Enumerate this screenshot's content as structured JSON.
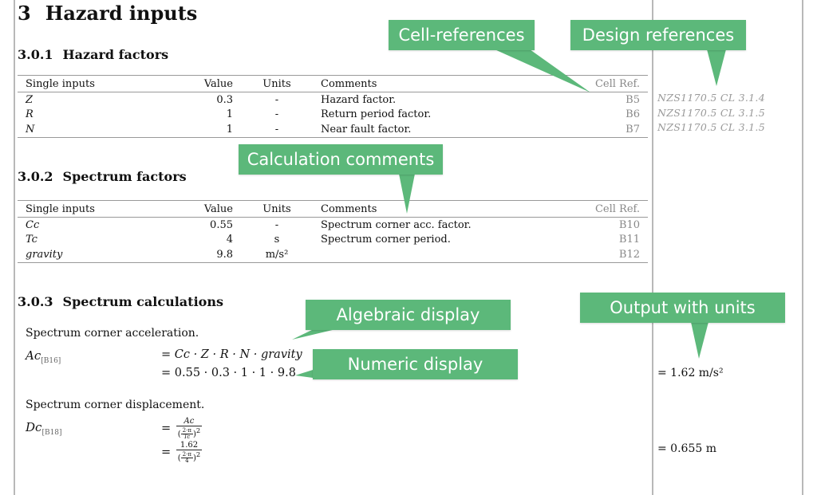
{
  "section": {
    "number": "3",
    "title": "Hazard inputs"
  },
  "hazard_factors": {
    "number": "3.0.1",
    "title": "Hazard factors",
    "headers": [
      "Single inputs",
      "Value",
      "Units",
      "Comments",
      "Cell Ref."
    ],
    "rows": [
      {
        "symbol": "Z",
        "value": "0.3",
        "units": "-",
        "comment": "Hazard factor.",
        "ref": "B5",
        "design_ref": "NZS1170.5 CL 3.1.4"
      },
      {
        "symbol": "R",
        "value": "1",
        "units": "-",
        "comment": "Return period factor.",
        "ref": "B6",
        "design_ref": "NZS1170.5 CL 3.1.5"
      },
      {
        "symbol": "N",
        "value": "1",
        "units": "-",
        "comment": "Near fault factor.",
        "ref": "B7",
        "design_ref": "NZS1170.5 CL 3.1.5"
      }
    ]
  },
  "spectrum_factors": {
    "number": "3.0.2",
    "title": "Spectrum factors",
    "headers": [
      "Single inputs",
      "Value",
      "Units",
      "Comments",
      "Cell Ref."
    ],
    "rows": [
      {
        "symbol": "Cc",
        "value": "0.55",
        "units": "-",
        "comment": "Spectrum corner acc. factor.",
        "ref": "B10"
      },
      {
        "symbol": "Tc",
        "value": "4",
        "units": "s",
        "comment": "Spectrum corner period.",
        "ref": "B11"
      },
      {
        "symbol": "gravity",
        "value": "9.8",
        "units": "m/s²",
        "comment": "",
        "ref": "B12"
      }
    ]
  },
  "spectrum_calcs": {
    "number": "3.0.3",
    "title": "Spectrum calculations",
    "acc": {
      "description": "Spectrum corner acceleration.",
      "symbol": "Ac",
      "ref": "[B16]",
      "algebraic": "= Cc · Z · R · N · gravity",
      "numeric": "= 0.55 · 0.3 · 1 · 1 · 9.8",
      "result": "= 1.62 m/s²"
    },
    "disp": {
      "description": "Spectrum corner displacement.",
      "symbol": "Dc",
      "ref": "[B18]",
      "alg_num": "Ac",
      "alg_den_a": "2·π",
      "alg_den_b": "Tc",
      "num_num": "1.62",
      "num_den_a": "2·π",
      "num_den_b": "4",
      "result": "= 0.655 m"
    }
  },
  "callouts": {
    "cell_references": "Cell-references",
    "design_references": "Design references",
    "calculation_comments": "Calculation comments",
    "algebraic_display": "Algebraic display",
    "numeric_display": "Numeric display",
    "output_with_units": "Output with units"
  },
  "colors": {
    "callout_green": "#5cb87a",
    "reference_gray": "#999999"
  }
}
